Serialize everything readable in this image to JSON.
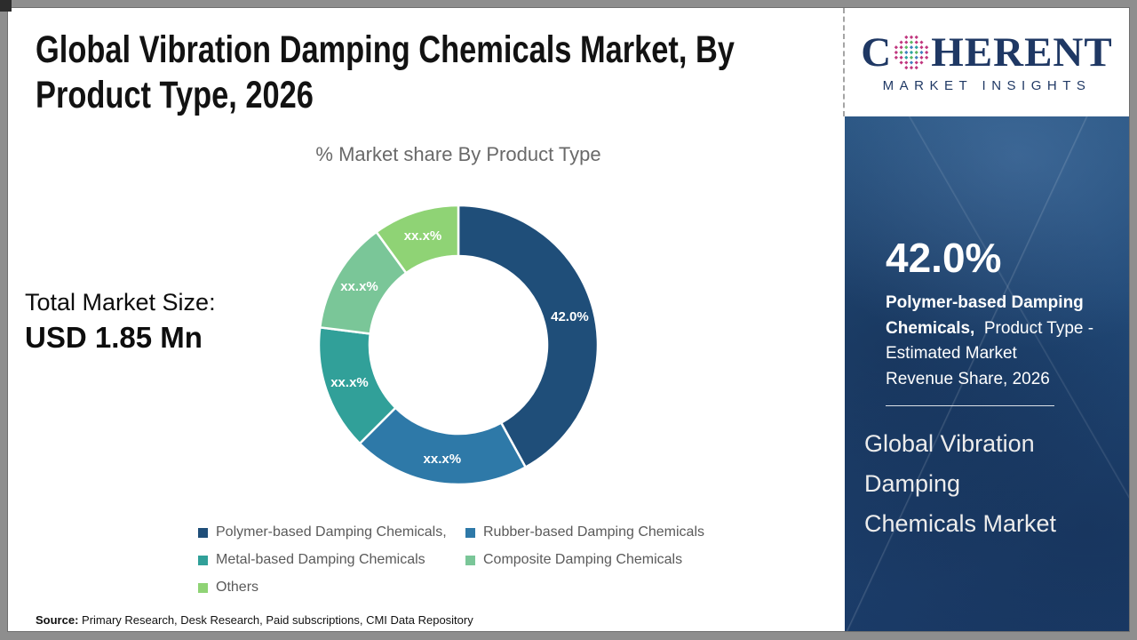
{
  "header": {
    "title": "Global Vibration Damping Chemicals Market, By Product Type, 2026"
  },
  "logo": {
    "part1": "C",
    "part2": "HERENT",
    "tagline": "MARKET INSIGHTS",
    "navy": "#1F3864",
    "globe": {
      "ring": "#C0367E",
      "inner": [
        "#2AA3A0",
        "#5BB763",
        "#3F7FBD"
      ]
    }
  },
  "chart_data": {
    "type": "pie",
    "subtype": "donut",
    "title": "% Market share By Product Type",
    "categories": [
      "Polymer-based Damping Chemicals,",
      "Rubber-based Damping Chemicals",
      "Metal-based Damping Chemicals",
      "Composite Damping Chemicals",
      "Others"
    ],
    "values": [
      42.0,
      20.5,
      14.5,
      13.0,
      10.0
    ],
    "value_labels": [
      "42.0%",
      "xx.x%",
      "xx.x%",
      "xx.x%",
      "xx.x%"
    ],
    "colors": [
      "#1F4E79",
      "#2E79A8",
      "#31A099",
      "#7AC698",
      "#8FD375"
    ],
    "start_angle_deg": 0,
    "direction": "clockwise",
    "inner_radius_ratio": 0.64,
    "legend_position": "bottom"
  },
  "left_panel": {
    "total_label": "Total Market Size:",
    "total_value": "USD 1.85 Mn"
  },
  "sidebar": {
    "stat_value": "42.0%",
    "stat_bold": "Polymer-based Damping\nChemicals,",
    "stat_rest": "  Product Type -\nEstimated Market\nRevenue Share, 2026",
    "market_name": "Global Vibration\nDamping\nChemicals Market",
    "bg_color": "#1F4573"
  },
  "footer": {
    "source_label": "Source:",
    "source_text": " Primary Research, Desk Research, Paid subscriptions, CMI Data Repository"
  }
}
